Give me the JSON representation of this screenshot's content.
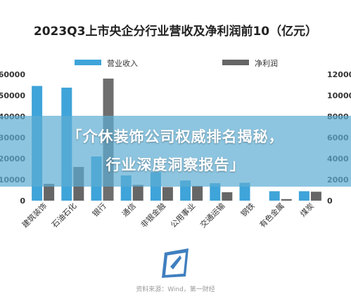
{
  "title": "2023Q3上市央企分行业营收及净利润前10（亿元）",
  "banner": {
    "line1": "「介休装饰公司权威排名揭秘，",
    "line2": "行业深度洞察报告」"
  },
  "source": "资料来源：Wind，第一财经",
  "colors": {
    "revenue": "#3fa4d9",
    "profit": "#666666",
    "profit_bank": "#6e6e6e",
    "axis_text": "#333333",
    "banner": "#5cadd3"
  },
  "logo_icon": "wind-flag-logo-icon",
  "chart_data": {
    "type": "bar",
    "title": "2023Q3上市央企分行业营收及净利润前10（亿元）",
    "categories": [
      "建筑装饰",
      "石油石化",
      "银行",
      "通信",
      "非银金融",
      "公用事业",
      "交通运输",
      "钢铁",
      "有色金属",
      "煤炭"
    ],
    "series": [
      {
        "name": "营业收入",
        "axis": "left",
        "values": [
          54500,
          53700,
          21000,
          12000,
          13500,
          9600,
          8300,
          8500,
          4500,
          4500
        ]
      },
      {
        "name": "净利润",
        "axis": "right",
        "values": [
          1600,
          3200,
          11600,
          1500,
          1300,
          1400,
          800,
          0,
          150,
          850
        ]
      }
    ],
    "y_left": {
      "min": 0,
      "max": 60000,
      "ticks": [
        "0",
        "10000",
        "20000",
        "30000",
        "40000",
        "50000",
        "60000"
      ]
    },
    "y_right": {
      "min": 0,
      "max": 12000,
      "ticks": [
        "0",
        "2000",
        "4000",
        "6000",
        "8000",
        "10000",
        "12000"
      ]
    },
    "legend_position": "top",
    "grid": false
  }
}
